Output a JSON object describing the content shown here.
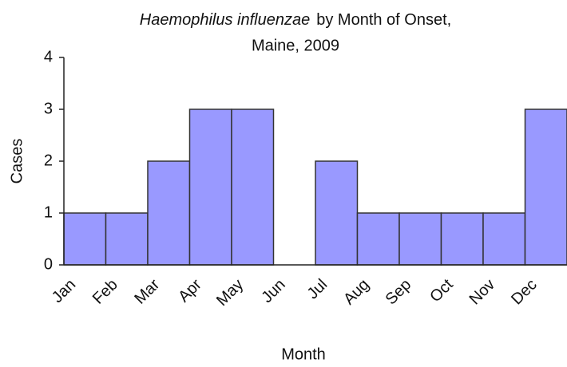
{
  "chart_data": {
    "type": "bar",
    "title": {
      "italic": "Haemophilus influenzae",
      "rest": "by Month of Onset,",
      "line2": "Maine, 2009"
    },
    "x_label": "Month",
    "y_label": "Cases",
    "categories": [
      "Jan",
      "Feb",
      "Mar",
      "Apr",
      "May",
      "Jun",
      "Jul",
      "Aug",
      "Sep",
      "Oct",
      "Nov",
      "Dec"
    ],
    "values": [
      1,
      1,
      2,
      3,
      3,
      0,
      2,
      1,
      1,
      1,
      1,
      3
    ],
    "color": "#9999ff",
    "ylim": [
      0,
      4
    ],
    "yticks": [
      0,
      1,
      2,
      3,
      4
    ],
    "grid": false
  }
}
